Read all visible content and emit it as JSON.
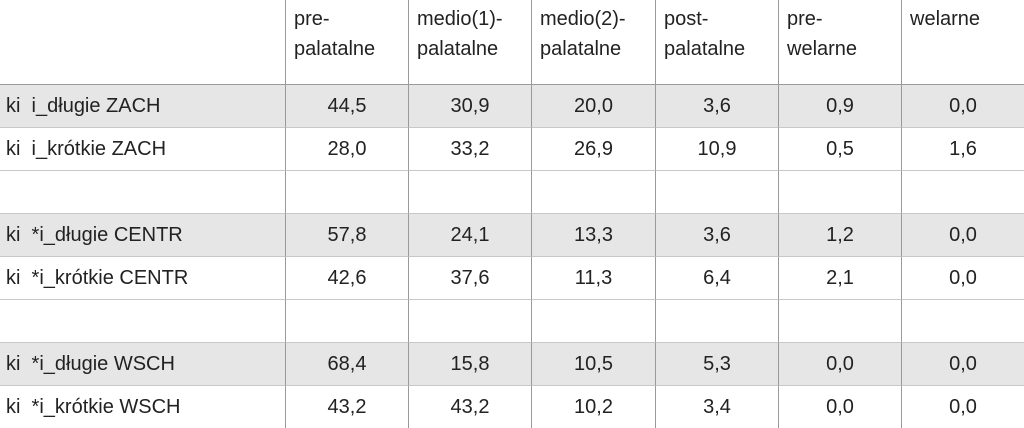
{
  "table": {
    "header": [
      "pre-\npalatalne",
      "medio(1)-\npalatalne",
      "medio(2)-\npalatalne",
      "post-\npalatalne",
      "pre-\nwelarne",
      "welarne"
    ],
    "groups": [
      [
        [
          "ki  i_długie ZACH",
          "44,5",
          "30,9",
          "20,0",
          "3,6",
          "0,9",
          "0,0"
        ],
        [
          "ki  i_krótkie ZACH",
          "28,0",
          "33,2",
          "26,9",
          "10,9",
          "0,5",
          "1,6"
        ]
      ],
      [
        [
          "ki  *i_długie CENTR",
          "57,8",
          "24,1",
          "13,3",
          "3,6",
          "1,2",
          "0,0"
        ],
        [
          "ki  *i_krótkie CENTR",
          "42,6",
          "37,6",
          "11,3",
          "6,4",
          "2,1",
          "0,0"
        ]
      ],
      [
        [
          "ki  *i_długie WSCH",
          "68,4",
          "15,8",
          "10,5",
          "5,3",
          "0,0",
          "0,0"
        ],
        [
          "ki  *i_krótkie WSCH",
          "43,2",
          "43,2",
          "10,2",
          "3,4",
          "0,0",
          "0,0"
        ]
      ]
    ]
  }
}
